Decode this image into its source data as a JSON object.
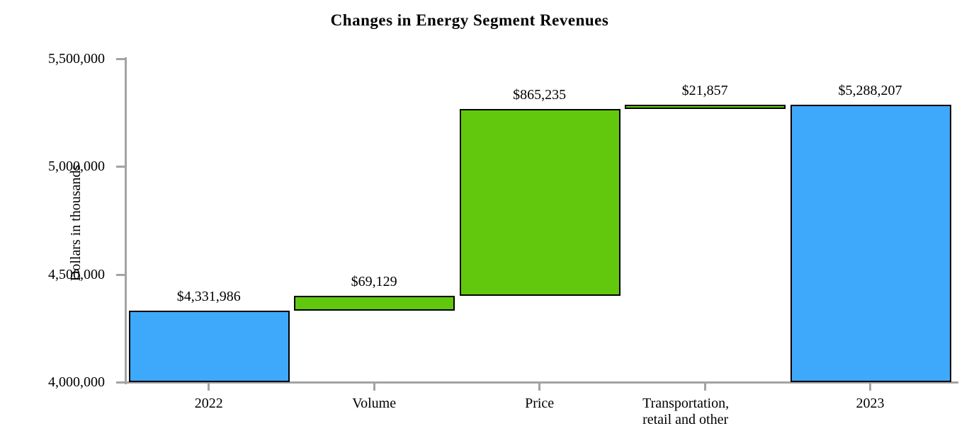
{
  "page": {
    "background": "#FFFFFF"
  },
  "chart_data": {
    "type": "bar",
    "subtype": "waterfall",
    "title": "Changes in Energy Segment Revenues",
    "ylabel": "Dollars in thousands",
    "xlabel": "",
    "ylim": [
      4000000,
      5500000
    ],
    "ytick_values": [
      4000000,
      4500000,
      5000000,
      5500000
    ],
    "ytick_labels": [
      "4,000,000",
      "4,500,000",
      "5,000,000",
      "5,500,000"
    ],
    "grid": false,
    "legend": "none",
    "categories": [
      "2022",
      "Volume",
      "Price",
      "Transportation,\nretail and other",
      "2023"
    ],
    "bars": [
      {
        "category": "2022",
        "kind": "total",
        "display": "$4,331,986",
        "value": 4331986,
        "start": 4000000,
        "end": 4331986,
        "color": "#3EA9FA"
      },
      {
        "category": "Volume",
        "kind": "increase",
        "display": "$69,129",
        "value": 69129,
        "start": 4331986,
        "end": 4401115,
        "color": "#62C80D"
      },
      {
        "category": "Price",
        "kind": "increase",
        "display": "$865,235",
        "value": 865235,
        "start": 4401115,
        "end": 5266350,
        "color": "#62C80D"
      },
      {
        "category": "Transportation,\nretail and other",
        "kind": "increase",
        "display": "$21,857",
        "value": 21857,
        "start": 5266350,
        "end": 5288207,
        "color": "#62C80D"
      },
      {
        "category": "2023",
        "kind": "total",
        "display": "$5,288,207",
        "value": 5288207,
        "start": 4000000,
        "end": 5288207,
        "color": "#3EA9FA"
      }
    ],
    "colors": {
      "total_bar": "#3EA9FA",
      "change_bar": "#62C80D",
      "bar_border": "#000000",
      "axis": "#A3A3A3",
      "text": "#000000"
    }
  }
}
